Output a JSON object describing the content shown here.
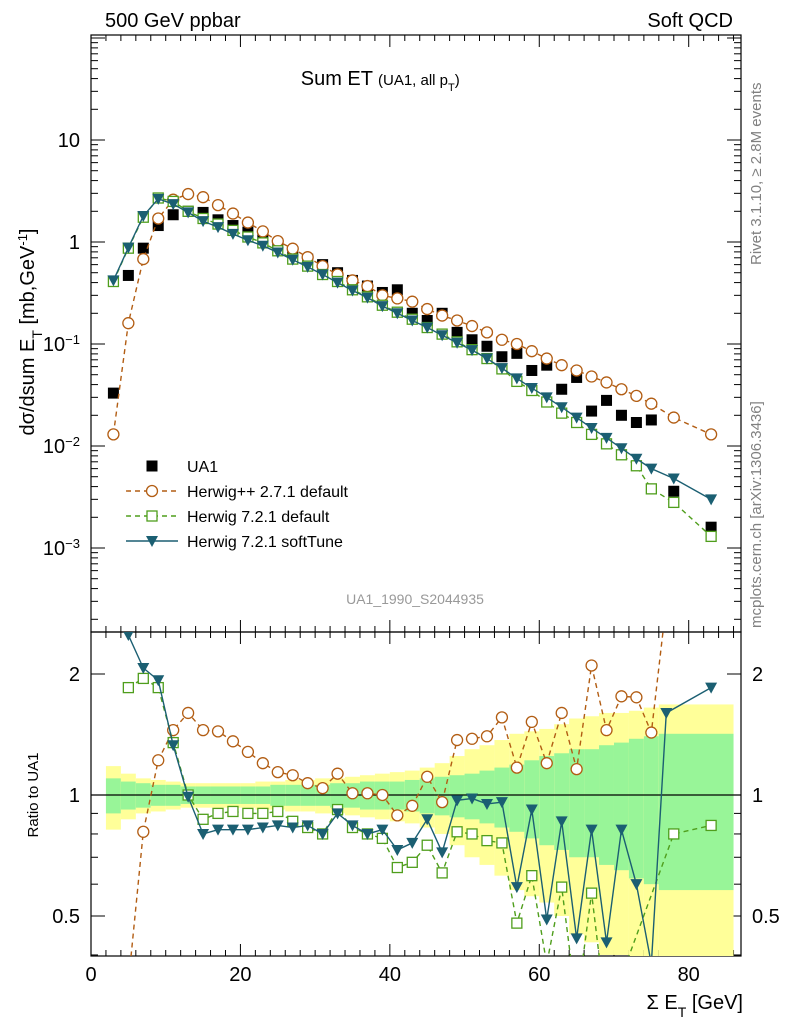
{
  "header": {
    "left": "500 GeV ppbar",
    "right": "Soft QCD"
  },
  "side_text": {
    "top": "Rivet 3.1.10, ≥ 2.8M events",
    "bottom": "mcplots.cern.ch [arXiv:1306.3436]"
  },
  "chart_data": [
    {
      "type": "scatter",
      "title": "Sum ET",
      "subtitle": "(UA1, all p_T)",
      "ylabel": "dσ/dsum E_T [mb,GeV^-1]",
      "y_scale": "log",
      "ylim": [
        0.0002,
        60
      ],
      "xlim": [
        0,
        87
      ],
      "y_ticks": [
        "10^-3",
        "10^-2",
        "10^-1",
        "1",
        "10"
      ],
      "watermark": "UA1_1990_S2044935",
      "legend_placement": "bottom-left",
      "series": [
        {
          "name": "UA1",
          "color": "#000000",
          "marker": "filled-square",
          "x": [
            3,
            5,
            7,
            9,
            11,
            13,
            15,
            17,
            19,
            21,
            23,
            25,
            27,
            29,
            31,
            33,
            35,
            37,
            39,
            41,
            43,
            45,
            47,
            49,
            51,
            53,
            55,
            57,
            59,
            61,
            63,
            65,
            67,
            69,
            71,
            73,
            75,
            78,
            83
          ],
          "y": [
            0.033,
            0.47,
            0.87,
            1.45,
            1.85,
            2.0,
            1.95,
            1.65,
            1.45,
            1.25,
            1.1,
            0.95,
            0.8,
            0.68,
            0.6,
            0.5,
            0.42,
            0.37,
            0.32,
            0.34,
            0.2,
            0.17,
            0.2,
            0.13,
            0.11,
            0.095,
            0.075,
            0.081,
            0.055,
            0.062,
            0.036,
            0.047,
            0.022,
            0.028,
            0.02,
            0.017,
            0.018,
            0.0036,
            0.0016
          ]
        },
        {
          "name": "Herwig++ 2.7.1 default",
          "color": "#b25d13",
          "marker": "open-circle",
          "line": "dashed",
          "x": [
            3,
            5,
            7,
            9,
            11,
            13,
            15,
            17,
            19,
            21,
            23,
            25,
            27,
            29,
            31,
            33,
            35,
            37,
            39,
            41,
            43,
            45,
            47,
            49,
            51,
            53,
            55,
            57,
            59,
            61,
            63,
            65,
            67,
            69,
            71,
            73,
            75,
            78,
            83
          ],
          "y": [
            0.013,
            0.16,
            0.68,
            1.7,
            2.6,
            2.95,
            2.75,
            2.3,
            1.9,
            1.55,
            1.27,
            1.02,
            0.86,
            0.71,
            0.58,
            0.48,
            0.42,
            0.37,
            0.3,
            0.28,
            0.26,
            0.22,
            0.19,
            0.17,
            0.15,
            0.13,
            0.11,
            0.1,
            0.085,
            0.072,
            0.062,
            0.055,
            0.048,
            0.042,
            0.036,
            0.031,
            0.026,
            0.019,
            0.013
          ]
        },
        {
          "name": "Herwig 7.2.1 default",
          "color": "#4f9e1c",
          "marker": "open-square",
          "line": "dashed",
          "x": [
            3,
            5,
            7,
            9,
            11,
            13,
            15,
            17,
            19,
            21,
            23,
            25,
            27,
            29,
            31,
            33,
            35,
            37,
            39,
            41,
            43,
            45,
            47,
            49,
            51,
            53,
            55,
            57,
            59,
            61,
            63,
            65,
            67,
            69,
            71,
            73,
            75,
            78,
            83
          ],
          "y": [
            0.41,
            0.87,
            1.75,
            2.7,
            2.5,
            2.0,
            1.7,
            1.5,
            1.3,
            1.12,
            0.98,
            0.82,
            0.68,
            0.58,
            0.48,
            0.41,
            0.34,
            0.29,
            0.24,
            0.205,
            0.175,
            0.145,
            0.125,
            0.105,
            0.088,
            0.072,
            0.057,
            0.043,
            0.035,
            0.027,
            0.021,
            0.017,
            0.013,
            0.0105,
            0.0082,
            0.0064,
            0.0038,
            0.0028,
            0.0013
          ]
        },
        {
          "name": "Herwig 7.2.1 softTune",
          "color": "#1b5f72",
          "marker": "filled-triangle-down",
          "line": "solid",
          "x": [
            3,
            5,
            7,
            9,
            11,
            13,
            15,
            17,
            19,
            21,
            23,
            25,
            27,
            29,
            31,
            33,
            35,
            37,
            39,
            41,
            43,
            45,
            47,
            49,
            51,
            53,
            55,
            57,
            59,
            61,
            63,
            65,
            67,
            69,
            71,
            73,
            75,
            78,
            83
          ],
          "y": [
            0.42,
            0.88,
            1.8,
            2.65,
            2.35,
            1.95,
            1.6,
            1.4,
            1.2,
            1.04,
            0.92,
            0.79,
            0.67,
            0.57,
            0.48,
            0.4,
            0.335,
            0.285,
            0.235,
            0.2,
            0.17,
            0.145,
            0.122,
            0.103,
            0.087,
            0.072,
            0.058,
            0.046,
            0.037,
            0.03,
            0.024,
            0.019,
            0.015,
            0.012,
            0.0095,
            0.0075,
            0.006,
            0.0048,
            0.003
          ]
        }
      ]
    },
    {
      "type": "line",
      "ylabel": "Ratio to UA1",
      "xlabel": "Σ E_T [GeV]",
      "xlim": [
        0,
        87
      ],
      "ylim": [
        0.36,
        2.4
      ],
      "y_scale": "log",
      "y_ticks": [
        "0.5",
        "1",
        "2"
      ],
      "x_ticks": [
        "0",
        "20",
        "40",
        "60",
        "80"
      ],
      "bands": {
        "x_edges": [
          2,
          4,
          6,
          8,
          10,
          12,
          14,
          16,
          18,
          20,
          22,
          24,
          26,
          28,
          30,
          32,
          34,
          36,
          38,
          40,
          42,
          44,
          46,
          48,
          50,
          52,
          54,
          56,
          58,
          60,
          62,
          64,
          66,
          68,
          70,
          72,
          74,
          76,
          86
        ],
        "inner_half_width": [
          0.1,
          0.08,
          0.07,
          0.06,
          0.06,
          0.05,
          0.05,
          0.05,
          0.05,
          0.05,
          0.05,
          0.06,
          0.06,
          0.06,
          0.06,
          0.07,
          0.07,
          0.08,
          0.08,
          0.08,
          0.09,
          0.1,
          0.11,
          0.12,
          0.13,
          0.15,
          0.17,
          0.19,
          0.22,
          0.25,
          0.27,
          0.3,
          0.3,
          0.33,
          0.35,
          0.38,
          0.4,
          0.42
        ],
        "outer_half_width": [
          0.18,
          0.13,
          0.1,
          0.09,
          0.08,
          0.07,
          0.07,
          0.07,
          0.07,
          0.07,
          0.08,
          0.08,
          0.09,
          0.09,
          0.1,
          0.1,
          0.11,
          0.12,
          0.13,
          0.14,
          0.15,
          0.17,
          0.2,
          0.25,
          0.3,
          0.33,
          0.37,
          0.42,
          0.44,
          0.46,
          0.5,
          0.55,
          0.57,
          0.6,
          0.6,
          0.62,
          0.65,
          0.68
        ],
        "inner_color": "#98f598",
        "outer_color": "#ffff99"
      },
      "series": [
        {
          "name": "Herwig++ 2.7.1 default",
          "color": "#b25d13",
          "marker": "open-circle",
          "line": "dashed",
          "x": [
            5,
            7,
            9,
            11,
            13,
            15,
            17,
            19,
            21,
            23,
            25,
            27,
            29,
            31,
            33,
            35,
            37,
            39,
            41,
            43,
            45,
            47,
            49,
            51,
            53,
            55,
            57,
            59,
            61,
            63,
            65,
            67,
            69,
            71,
            73,
            75,
            77
          ],
          "y": [
            0.34,
            0.81,
            1.22,
            1.45,
            1.6,
            1.45,
            1.44,
            1.36,
            1.28,
            1.2,
            1.14,
            1.12,
            1.07,
            1.04,
            1.13,
            1.01,
            1.01,
            1.0,
            0.89,
            0.94,
            1.11,
            0.96,
            1.37,
            1.38,
            1.4,
            1.56,
            1.17,
            1.52,
            1.2,
            1.6,
            1.16,
            2.1,
            1.45,
            1.76,
            1.75,
            1.43,
            3.0
          ]
        },
        {
          "name": "Herwig 7.2.1 default",
          "color": "#4f9e1c",
          "marker": "open-square",
          "line": "dashed",
          "x": [
            5,
            7,
            9,
            11,
            13,
            15,
            17,
            19,
            21,
            23,
            25,
            27,
            29,
            31,
            33,
            35,
            37,
            39,
            41,
            43,
            45,
            47,
            49,
            51,
            53,
            55,
            57,
            59,
            61,
            63,
            65,
            67,
            69,
            78,
            83
          ],
          "y": [
            1.85,
            1.95,
            1.85,
            1.35,
            1.0,
            0.87,
            0.9,
            0.91,
            0.9,
            0.9,
            0.91,
            0.86,
            0.83,
            0.8,
            0.92,
            0.83,
            0.8,
            0.78,
            0.66,
            0.68,
            0.75,
            0.64,
            0.81,
            0.8,
            0.77,
            0.76,
            0.48,
            0.63,
            0.38,
            0.59,
            0.3,
            0.57,
            0.28,
            0.8,
            0.84
          ]
        },
        {
          "name": "Herwig 7.2.1 softTune",
          "color": "#1b5f72",
          "marker": "filled-triangle-down",
          "line": "solid",
          "x": [
            5,
            7,
            9,
            11,
            13,
            15,
            17,
            19,
            21,
            23,
            25,
            27,
            29,
            31,
            33,
            35,
            37,
            39,
            41,
            43,
            45,
            47,
            49,
            51,
            53,
            55,
            57,
            59,
            61,
            63,
            65,
            67,
            69,
            71,
            73,
            75,
            77,
            83
          ],
          "y": [
            2.5,
            2.07,
            1.93,
            1.33,
            0.99,
            0.8,
            0.82,
            0.82,
            0.82,
            0.83,
            0.84,
            0.83,
            0.84,
            0.8,
            0.9,
            0.84,
            0.8,
            0.82,
            0.73,
            0.76,
            0.87,
            0.72,
            0.97,
            0.98,
            0.95,
            0.96,
            0.59,
            0.92,
            0.49,
            0.86,
            0.44,
            0.82,
            0.43,
            0.82,
            0.6,
            0.38,
            1.6,
            1.85
          ]
        }
      ]
    }
  ]
}
